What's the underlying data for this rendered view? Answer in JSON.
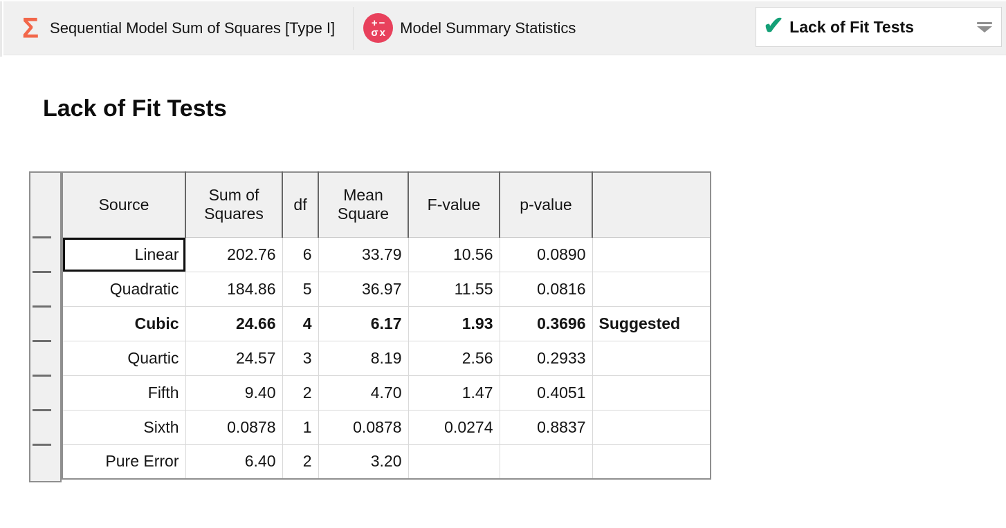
{
  "tabbar": {
    "tab_sequential": {
      "label": "Sequential Model Sum of Squares [Type I]",
      "icon": "sigma",
      "icon_glyph": "Σ",
      "icon_color": "#F2674A"
    },
    "tab_model_summary": {
      "label": "Model Summary Statistics",
      "icon": "math-circle",
      "icon_top": "+−",
      "icon_bottom": "σx",
      "icon_color": "#E8415C"
    },
    "tab_lack_of_fit": {
      "label": "Lack of Fit Tests",
      "icon": "checkmark",
      "icon_glyph": "✔",
      "icon_color": "#14A077",
      "active": true
    }
  },
  "main": {
    "title": "Lack of Fit Tests",
    "table": {
      "headers": [
        "Source",
        "Sum of\nSquares",
        "df",
        "Mean\nSquare",
        "F-value",
        "p-value",
        ""
      ],
      "rows": [
        {
          "source": "Linear",
          "sum_of_squares": "202.76",
          "df": "6",
          "mean_square": "33.79",
          "f_value": "10.56",
          "p_value": "0.0890",
          "note": "",
          "selected": true,
          "bold": false
        },
        {
          "source": "Quadratic",
          "sum_of_squares": "184.86",
          "df": "5",
          "mean_square": "36.97",
          "f_value": "11.55",
          "p_value": "0.0816",
          "note": "",
          "selected": false,
          "bold": false
        },
        {
          "source": "Cubic",
          "sum_of_squares": "24.66",
          "df": "4",
          "mean_square": "6.17",
          "f_value": "1.93",
          "p_value": "0.3696",
          "note": "Suggested",
          "selected": false,
          "bold": true
        },
        {
          "source": "Quartic",
          "sum_of_squares": "24.57",
          "df": "3",
          "mean_square": "8.19",
          "f_value": "2.56",
          "p_value": "0.2933",
          "note": "",
          "selected": false,
          "bold": false
        },
        {
          "source": "Fifth",
          "sum_of_squares": "9.40",
          "df": "2",
          "mean_square": "4.70",
          "f_value": "1.47",
          "p_value": "0.4051",
          "note": "",
          "selected": false,
          "bold": false
        },
        {
          "source": "Sixth",
          "sum_of_squares": "0.0878",
          "df": "1",
          "mean_square": "0.0878",
          "f_value": "0.0274",
          "p_value": "0.8837",
          "note": "",
          "selected": false,
          "bold": false
        },
        {
          "source": "Pure Error",
          "sum_of_squares": "6.40",
          "df": "2",
          "mean_square": "3.20",
          "f_value": "",
          "p_value": "",
          "note": "",
          "selected": false,
          "bold": false
        }
      ]
    }
  }
}
